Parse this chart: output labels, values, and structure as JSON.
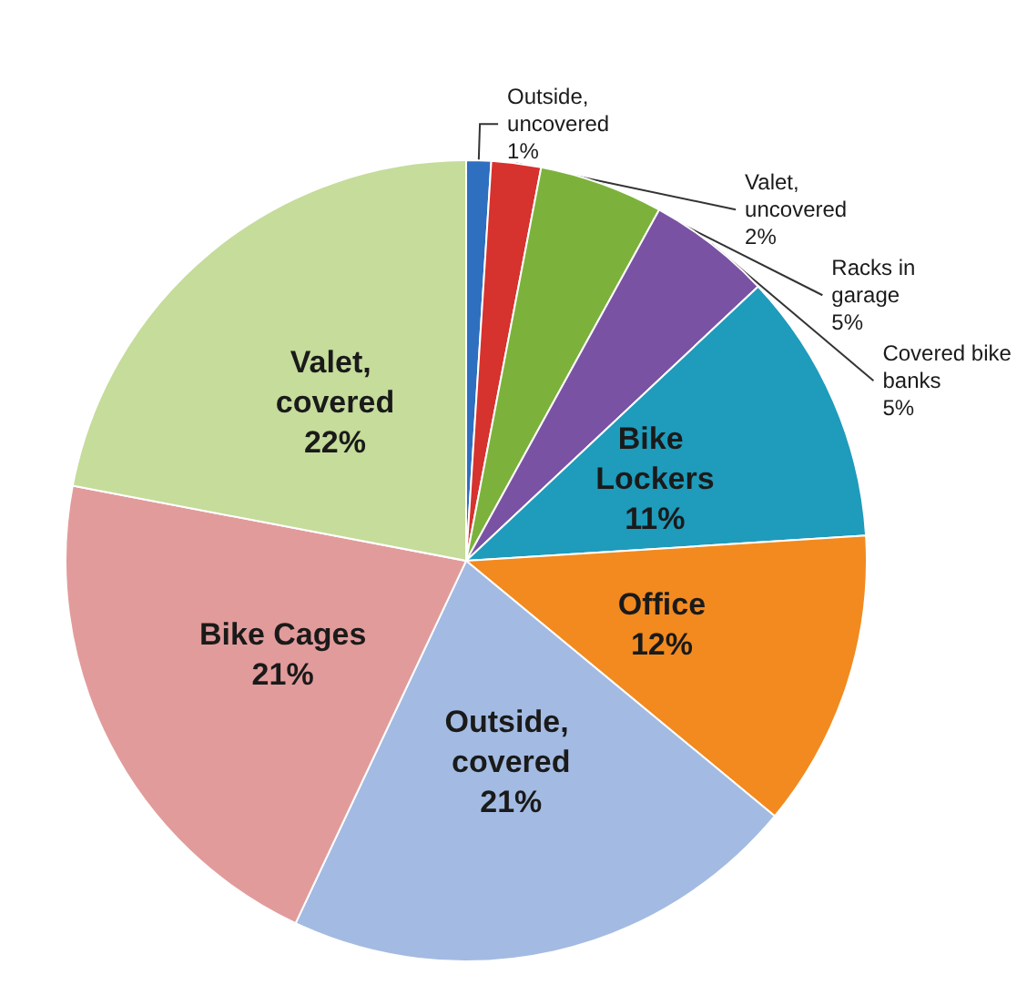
{
  "chart_data": {
    "type": "pie",
    "categories": [
      "Outside, uncovered",
      "Valet, uncovered",
      "Racks in garage",
      "Covered bike banks",
      "Bike Lockers",
      "Office",
      "Outside, covered",
      "Bike Cages",
      "Valet, covered"
    ],
    "values": [
      1,
      2,
      5,
      5,
      11,
      12,
      21,
      21,
      22
    ],
    "colors": [
      "#2e6fc0",
      "#d6322e",
      "#7cb23c",
      "#7a52a3",
      "#1f9bbb",
      "#f28a1f",
      "#a3bbe2",
      "#e29b9b",
      "#c5dc9b"
    ],
    "value_labels": [
      "1%",
      "2%",
      "5%",
      "5%",
      "11%",
      "12%",
      "21%",
      "21%",
      "22%"
    ],
    "legend": false
  }
}
